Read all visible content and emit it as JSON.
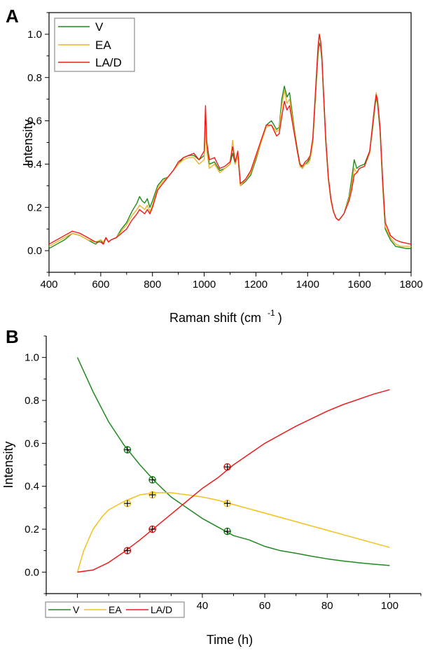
{
  "colors": {
    "V": "#1e8a1e",
    "EA": "#f0b42a",
    "LAD": "#ee1c1c",
    "EA_B": "#f2c21a"
  },
  "chart_data": [
    {
      "panel": "A",
      "type": "line",
      "xlabel": "Raman shift (cm",
      "xlabel_sup": "-1",
      "xlabel_end": ")",
      "ylabel": "Intensity",
      "xlim": [
        400,
        1800
      ],
      "ylim": [
        -0.1,
        1.1
      ],
      "xticks": [
        400,
        600,
        800,
        1000,
        1200,
        1400,
        1600,
        1800
      ],
      "yticks": [
        0.0,
        0.2,
        0.4,
        0.6,
        0.8,
        1.0
      ],
      "ytick_labels": [
        "0.0",
        "0.2",
        "0.4",
        "0.6",
        "0.8",
        "1.0"
      ],
      "grid": false,
      "legend": "top-left",
      "series": [
        {
          "name": "V",
          "color": "#1e8a1e",
          "x": [
            400,
            430,
            460,
            490,
            520,
            550,
            580,
            600,
            610,
            620,
            630,
            640,
            660,
            680,
            700,
            720,
            740,
            750,
            760,
            770,
            780,
            790,
            800,
            820,
            840,
            860,
            880,
            900,
            920,
            940,
            960,
            980,
            1000,
            1005,
            1010,
            1020,
            1040,
            1060,
            1080,
            1100,
            1110,
            1120,
            1130,
            1140,
            1160,
            1180,
            1200,
            1220,
            1240,
            1260,
            1280,
            1290,
            1300,
            1310,
            1320,
            1330,
            1340,
            1350,
            1360,
            1370,
            1380,
            1390,
            1400,
            1410,
            1420,
            1430,
            1440,
            1445,
            1450,
            1455,
            1460,
            1470,
            1480,
            1490,
            1500,
            1510,
            1520,
            1540,
            1560,
            1570,
            1580,
            1590,
            1600,
            1620,
            1640,
            1650,
            1660,
            1665,
            1670,
            1680,
            1690,
            1700,
            1720,
            1740,
            1760,
            1780,
            1800
          ],
          "y": [
            0.01,
            0.03,
            0.05,
            0.08,
            0.07,
            0.05,
            0.03,
            0.05,
            0.03,
            0.06,
            0.04,
            0.05,
            0.06,
            0.1,
            0.13,
            0.18,
            0.22,
            0.25,
            0.23,
            0.22,
            0.24,
            0.2,
            0.23,
            0.3,
            0.33,
            0.34,
            0.37,
            0.4,
            0.43,
            0.44,
            0.44,
            0.42,
            0.44,
            0.62,
            0.48,
            0.4,
            0.41,
            0.37,
            0.38,
            0.4,
            0.45,
            0.4,
            0.44,
            0.3,
            0.32,
            0.35,
            0.42,
            0.5,
            0.58,
            0.6,
            0.56,
            0.57,
            0.7,
            0.76,
            0.71,
            0.73,
            0.64,
            0.55,
            0.47,
            0.4,
            0.38,
            0.4,
            0.41,
            0.43,
            0.5,
            0.7,
            0.9,
            0.96,
            0.94,
            0.88,
            0.75,
            0.5,
            0.33,
            0.23,
            0.18,
            0.15,
            0.14,
            0.17,
            0.25,
            0.33,
            0.42,
            0.38,
            0.39,
            0.4,
            0.46,
            0.55,
            0.66,
            0.71,
            0.68,
            0.55,
            0.3,
            0.1,
            0.05,
            0.02,
            0.015,
            0.01,
            0.01
          ]
        },
        {
          "name": "EA",
          "color": "#f0b42a",
          "x": [
            400,
            430,
            460,
            490,
            520,
            550,
            580,
            600,
            610,
            620,
            630,
            640,
            660,
            680,
            700,
            720,
            740,
            750,
            760,
            770,
            780,
            790,
            800,
            820,
            840,
            860,
            880,
            900,
            920,
            940,
            960,
            980,
            1000,
            1005,
            1010,
            1020,
            1040,
            1060,
            1080,
            1100,
            1110,
            1120,
            1130,
            1140,
            1160,
            1180,
            1200,
            1220,
            1240,
            1260,
            1280,
            1290,
            1300,
            1310,
            1320,
            1330,
            1340,
            1350,
            1360,
            1370,
            1380,
            1390,
            1400,
            1410,
            1420,
            1430,
            1440,
            1445,
            1450,
            1455,
            1460,
            1470,
            1480,
            1490,
            1500,
            1510,
            1520,
            1540,
            1560,
            1570,
            1580,
            1590,
            1600,
            1620,
            1640,
            1650,
            1660,
            1665,
            1670,
            1680,
            1690,
            1700,
            1720,
            1740,
            1760,
            1780,
            1800
          ],
          "y": [
            0.02,
            0.04,
            0.06,
            0.08,
            0.07,
            0.05,
            0.04,
            0.05,
            0.04,
            0.06,
            0.04,
            0.05,
            0.06,
            0.09,
            0.12,
            0.16,
            0.19,
            0.21,
            0.2,
            0.19,
            0.21,
            0.18,
            0.21,
            0.29,
            0.32,
            0.34,
            0.37,
            0.4,
            0.42,
            0.43,
            0.43,
            0.4,
            0.42,
            0.58,
            0.46,
            0.38,
            0.4,
            0.36,
            0.38,
            0.4,
            0.51,
            0.4,
            0.44,
            0.3,
            0.33,
            0.36,
            0.43,
            0.5,
            0.57,
            0.58,
            0.55,
            0.56,
            0.67,
            0.74,
            0.68,
            0.7,
            0.62,
            0.54,
            0.46,
            0.39,
            0.38,
            0.4,
            0.4,
            0.42,
            0.5,
            0.71,
            0.92,
            1.0,
            0.96,
            0.89,
            0.76,
            0.51,
            0.33,
            0.23,
            0.18,
            0.15,
            0.14,
            0.17,
            0.24,
            0.3,
            0.38,
            0.36,
            0.38,
            0.39,
            0.45,
            0.56,
            0.67,
            0.73,
            0.69,
            0.56,
            0.31,
            0.11,
            0.06,
            0.03,
            0.02,
            0.02,
            0.02
          ]
        },
        {
          "name": "LA/D",
          "color": "#ee1c1c",
          "x": [
            400,
            430,
            460,
            490,
            520,
            550,
            580,
            600,
            610,
            620,
            630,
            640,
            660,
            680,
            700,
            720,
            740,
            750,
            760,
            770,
            780,
            790,
            800,
            820,
            840,
            860,
            880,
            900,
            920,
            940,
            960,
            980,
            1000,
            1005,
            1010,
            1020,
            1040,
            1060,
            1080,
            1100,
            1110,
            1120,
            1130,
            1140,
            1160,
            1180,
            1200,
            1220,
            1240,
            1260,
            1280,
            1290,
            1300,
            1310,
            1320,
            1330,
            1340,
            1350,
            1360,
            1370,
            1380,
            1390,
            1400,
            1410,
            1420,
            1430,
            1440,
            1445,
            1450,
            1455,
            1460,
            1470,
            1480,
            1490,
            1500,
            1510,
            1520,
            1540,
            1560,
            1570,
            1580,
            1590,
            1600,
            1620,
            1640,
            1650,
            1660,
            1665,
            1670,
            1680,
            1690,
            1700,
            1720,
            1740,
            1760,
            1780,
            1800
          ],
          "y": [
            0.03,
            0.05,
            0.07,
            0.09,
            0.08,
            0.06,
            0.04,
            0.04,
            0.03,
            0.06,
            0.04,
            0.05,
            0.06,
            0.08,
            0.1,
            0.14,
            0.17,
            0.19,
            0.18,
            0.17,
            0.19,
            0.17,
            0.2,
            0.28,
            0.31,
            0.34,
            0.37,
            0.41,
            0.43,
            0.44,
            0.45,
            0.42,
            0.46,
            0.67,
            0.5,
            0.42,
            0.43,
            0.38,
            0.39,
            0.41,
            0.48,
            0.41,
            0.46,
            0.31,
            0.33,
            0.37,
            0.44,
            0.51,
            0.58,
            0.58,
            0.53,
            0.54,
            0.62,
            0.69,
            0.65,
            0.67,
            0.6,
            0.53,
            0.46,
            0.4,
            0.39,
            0.41,
            0.42,
            0.44,
            0.52,
            0.73,
            0.94,
            1.0,
            0.97,
            0.9,
            0.77,
            0.52,
            0.34,
            0.24,
            0.18,
            0.15,
            0.14,
            0.17,
            0.23,
            0.28,
            0.35,
            0.36,
            0.38,
            0.39,
            0.46,
            0.57,
            0.68,
            0.72,
            0.7,
            0.57,
            0.33,
            0.13,
            0.07,
            0.05,
            0.04,
            0.035,
            0.03
          ]
        }
      ]
    },
    {
      "panel": "B",
      "type": "line",
      "xlabel": "Time (h)",
      "ylabel": "Intensity",
      "xlim": [
        -10,
        110
      ],
      "ylim": [
        -0.1,
        1.1
      ],
      "xticks": [
        0,
        20,
        40,
        60,
        80,
        100
      ],
      "yticks": [
        0.0,
        0.2,
        0.4,
        0.6,
        0.8,
        1.0
      ],
      "ytick_labels": [
        "0.0",
        "0.2",
        "0.4",
        "0.6",
        "0.8",
        "1.0"
      ],
      "grid": false,
      "legend": "bottom-left",
      "series": [
        {
          "name": "V",
          "color": "#1e8a1e",
          "fit_x": [
            0,
            5,
            10,
            15,
            20,
            25,
            30,
            35,
            40,
            45,
            50,
            55,
            60,
            65,
            70,
            75,
            80,
            85,
            90,
            95,
            100
          ],
          "fit_y": [
            1.0,
            0.84,
            0.7,
            0.59,
            0.5,
            0.42,
            0.35,
            0.3,
            0.25,
            0.21,
            0.17,
            0.15,
            0.12,
            0.1,
            0.088,
            0.074,
            0.062,
            0.052,
            0.044,
            0.037,
            0.031
          ],
          "points_x": [
            16,
            24,
            48
          ],
          "points_y": [
            0.57,
            0.43,
            0.19
          ]
        },
        {
          "name": "EA",
          "color": "#f2c21a",
          "fit_x": [
            0,
            2,
            5,
            8,
            10,
            15,
            20,
            25,
            30,
            35,
            40,
            45,
            50,
            55,
            60,
            65,
            70,
            75,
            80,
            85,
            90,
            95,
            100
          ],
          "fit_y": [
            0.0,
            0.1,
            0.2,
            0.26,
            0.29,
            0.33,
            0.36,
            0.37,
            0.37,
            0.36,
            0.35,
            0.335,
            0.315,
            0.295,
            0.275,
            0.255,
            0.235,
            0.215,
            0.195,
            0.175,
            0.155,
            0.135,
            0.115
          ],
          "points_x": [
            16,
            24,
            48
          ],
          "points_y": [
            0.32,
            0.36,
            0.32
          ]
        },
        {
          "name": "LA/D",
          "color": "#ee1c1c",
          "fit_x": [
            0,
            5,
            10,
            15,
            20,
            25,
            30,
            35,
            40,
            45,
            50,
            55,
            60,
            65,
            70,
            75,
            80,
            85,
            90,
            95,
            100
          ],
          "fit_y": [
            0.0,
            0.01,
            0.045,
            0.095,
            0.15,
            0.21,
            0.27,
            0.33,
            0.39,
            0.44,
            0.5,
            0.55,
            0.6,
            0.64,
            0.68,
            0.715,
            0.75,
            0.78,
            0.805,
            0.83,
            0.85
          ],
          "points_x": [
            16,
            24,
            48
          ],
          "points_y": [
            0.1,
            0.2,
            0.49
          ]
        }
      ]
    }
  ]
}
